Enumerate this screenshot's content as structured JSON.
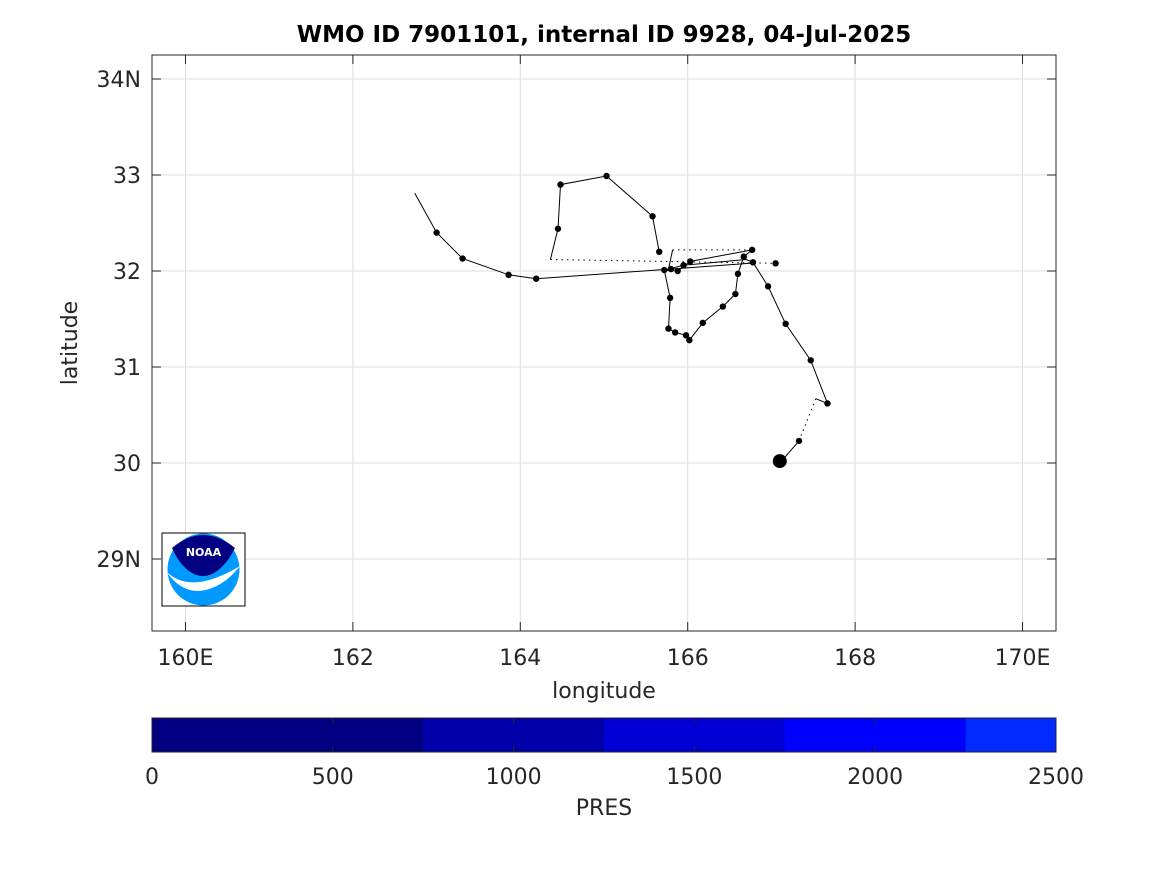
{
  "chart_data": {
    "type": "line",
    "title": "WMO ID 7901101, internal ID 9928, 04-Jul-2025",
    "xlabel": "longitude",
    "ylabel": "latitude",
    "xlim": [
      159.6,
      170.4
    ],
    "ylim": [
      28.25,
      34.25
    ],
    "grid": true,
    "x_ticks": [
      {
        "value": 160,
        "label": "160E"
      },
      {
        "value": 162,
        "label": "162"
      },
      {
        "value": 164,
        "label": "164"
      },
      {
        "value": 166,
        "label": "166"
      },
      {
        "value": 168,
        "label": "168"
      },
      {
        "value": 170,
        "label": "170E"
      }
    ],
    "y_ticks": [
      {
        "value": 29,
        "label": "29N"
      },
      {
        "value": 30,
        "label": "30"
      },
      {
        "value": 31,
        "label": "31"
      },
      {
        "value": 32,
        "label": "32"
      },
      {
        "value": 33,
        "label": "33"
      },
      {
        "value": 34,
        "label": "34N"
      }
    ],
    "track_segments": [
      {
        "style": "solid",
        "points": [
          [
            162.74,
            32.81
          ],
          [
            163.0,
            32.4
          ],
          [
            163.31,
            32.13
          ],
          [
            163.86,
            31.96
          ],
          [
            164.19,
            31.92
          ],
          [
            166.75,
            32.08
          ]
        ]
      },
      {
        "style": "solid",
        "points": [
          [
            164.36,
            32.12
          ],
          [
            164.45,
            32.44
          ],
          [
            164.48,
            32.9
          ],
          [
            165.03,
            32.99
          ],
          [
            165.58,
            32.57
          ],
          [
            165.66,
            32.2
          ],
          [
            165.63,
            32.22
          ]
        ]
      },
      {
        "style": "solid",
        "points": [
          [
            165.72,
            32.01
          ],
          [
            165.88,
            32.0
          ],
          [
            166.03,
            32.1
          ],
          [
            166.77,
            32.22
          ],
          [
            166.67,
            32.15
          ],
          [
            166.6,
            31.97
          ],
          [
            166.57,
            31.76
          ],
          [
            166.42,
            31.63
          ],
          [
            166.18,
            31.46
          ],
          [
            166.02,
            31.28
          ],
          [
            165.98,
            31.33
          ],
          [
            165.85,
            31.36
          ],
          [
            165.77,
            31.4
          ],
          [
            165.79,
            31.72
          ],
          [
            165.72,
            32.01
          ]
        ]
      },
      {
        "style": "solid",
        "points": [
          [
            165.82,
            32.22
          ],
          [
            165.77,
            32.02
          ],
          [
            165.95,
            32.06
          ],
          [
            166.7,
            32.12
          ],
          [
            166.78,
            32.09
          ],
          [
            166.96,
            31.84
          ],
          [
            167.17,
            31.45
          ],
          [
            167.47,
            31.07
          ],
          [
            167.67,
            30.62
          ],
          [
            167.53,
            30.67
          ]
        ]
      },
      {
        "style": "solid",
        "points": [
          [
            167.33,
            30.23
          ],
          [
            167.12,
            30.02
          ],
          [
            167.08,
            30.0
          ]
        ]
      },
      {
        "style": "dotted",
        "points": [
          [
            164.36,
            32.12
          ],
          [
            167.05,
            32.08
          ]
        ]
      },
      {
        "style": "dotted",
        "points": [
          [
            165.82,
            32.22
          ],
          [
            166.77,
            32.22
          ]
        ]
      },
      {
        "style": "dotted",
        "points": [
          [
            167.53,
            30.67
          ],
          [
            167.33,
            30.23
          ]
        ]
      }
    ],
    "profile_points": [
      [
        163.0,
        32.4
      ],
      [
        163.31,
        32.13
      ],
      [
        163.86,
        31.96
      ],
      [
        164.19,
        31.92
      ],
      [
        164.45,
        32.44
      ],
      [
        164.48,
        32.9
      ],
      [
        165.03,
        32.99
      ],
      [
        165.58,
        32.57
      ],
      [
        165.66,
        32.2
      ],
      [
        165.72,
        32.01
      ],
      [
        165.8,
        32.02
      ],
      [
        165.88,
        32.0
      ],
      [
        165.95,
        32.06
      ],
      [
        166.03,
        32.1
      ],
      [
        166.77,
        32.22
      ],
      [
        166.67,
        32.15
      ],
      [
        166.6,
        31.97
      ],
      [
        166.57,
        31.76
      ],
      [
        166.42,
        31.63
      ],
      [
        166.18,
        31.46
      ],
      [
        166.02,
        31.28
      ],
      [
        165.98,
        31.33
      ],
      [
        165.85,
        31.36
      ],
      [
        165.77,
        31.4
      ],
      [
        165.79,
        31.72
      ],
      [
        166.78,
        32.09
      ],
      [
        167.05,
        32.08
      ],
      [
        166.96,
        31.84
      ],
      [
        167.17,
        31.45
      ],
      [
        167.47,
        31.07
      ],
      [
        167.67,
        30.62
      ],
      [
        167.33,
        30.23
      ]
    ],
    "latest_position": [
      167.1,
      30.02
    ],
    "colorbar": {
      "label": "PRES",
      "range": [
        0,
        2500
      ],
      "ticks": [
        0,
        500,
        1000,
        1500,
        2000,
        2500
      ],
      "bins": [
        {
          "from": 0,
          "to": 750,
          "color": "#000080"
        },
        {
          "from": 750,
          "to": 1250,
          "color": "#0000aa"
        },
        {
          "from": 1250,
          "to": 1750,
          "color": "#0000d5"
        },
        {
          "from": 1750,
          "to": 2250,
          "color": "#0000ff"
        },
        {
          "from": 2250,
          "to": 2500,
          "color": "#002aff"
        }
      ]
    }
  },
  "logo": {
    "text": "NOAA",
    "dark_color": "#000080",
    "light_color": "#0099ff"
  }
}
